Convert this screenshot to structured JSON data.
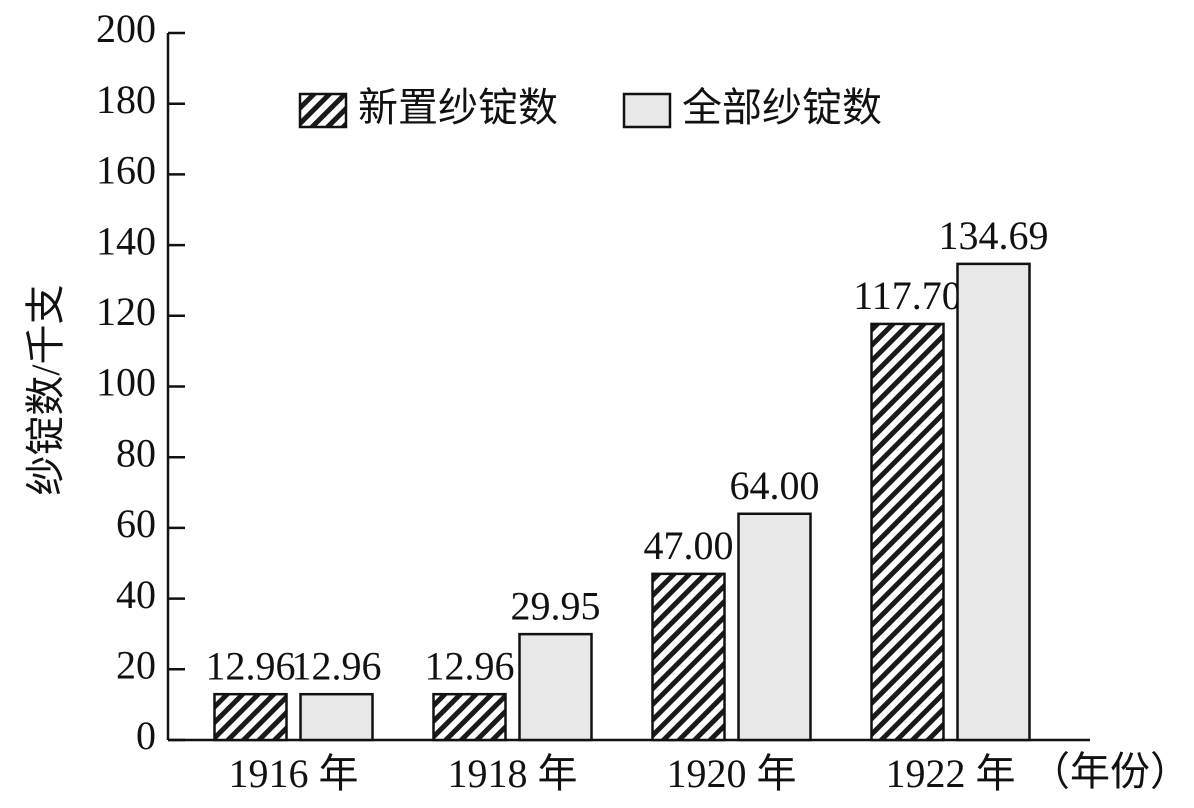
{
  "chart_data": {
    "type": "bar",
    "ylabel": "纱锭数/千支",
    "xlabel": "（年份）",
    "categories": [
      "1916 年",
      "1918 年",
      "1920 年",
      "1922 年"
    ],
    "series": [
      {
        "name": "新置纱锭数",
        "color": "#1a1a1a",
        "pattern": "hatch",
        "values": [
          12.96,
          12.96,
          47,
          117.7
        ],
        "value_labels": [
          "12.96",
          "12.96",
          "47.00",
          "117.70"
        ]
      },
      {
        "name": "全部纱锭数",
        "color": "#e8e8e8",
        "pattern": "solid",
        "values": [
          12.96,
          29.95,
          64,
          134.69
        ],
        "value_labels": [
          "12.96",
          "29.95",
          "64.00",
          "134.69"
        ]
      }
    ],
    "ylim": [
      0,
      200
    ],
    "yticks": [
      0,
      20,
      40,
      60,
      80,
      100,
      120,
      140,
      160,
      180,
      200
    ],
    "grid": false
  }
}
